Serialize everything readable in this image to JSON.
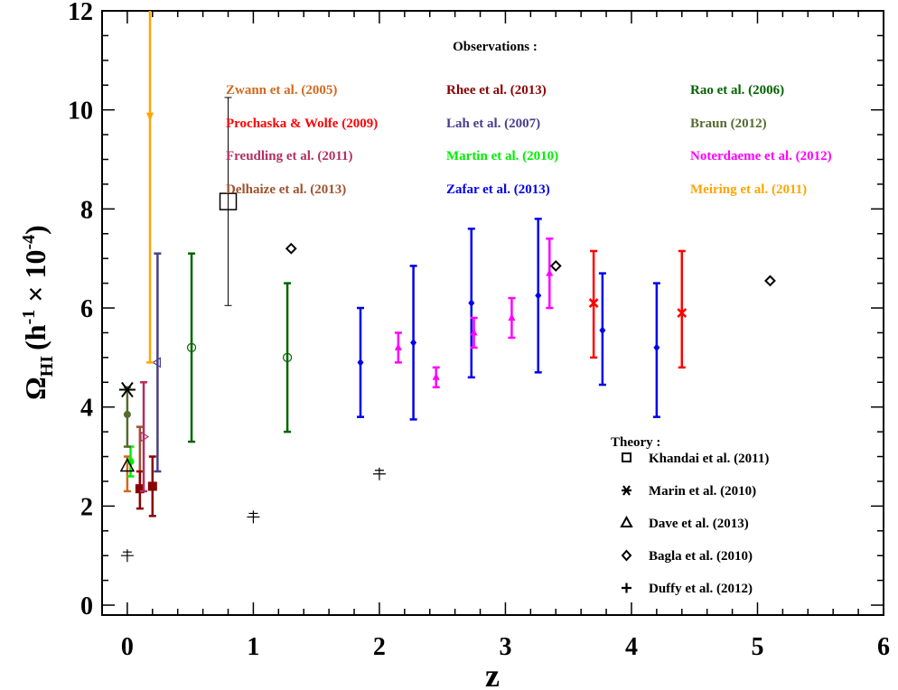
{
  "chart_data": {
    "type": "scatter",
    "x_axis": {
      "label": "z",
      "range": [
        -0.2,
        6.0
      ],
      "ticks": [
        0,
        1,
        2,
        3,
        4,
        5,
        6
      ],
      "minor_step": 0.2
    },
    "y_axis": {
      "label_symbol": "Ω",
      "label_subscript": "HI",
      "label_units": "(h",
      "label_exp1": "-1",
      "label_times": " × 10",
      "label_exp2": "-4",
      "label_close": ")",
      "range": [
        -0.2,
        12.0
      ],
      "ticks": [
        0,
        2,
        4,
        6,
        8,
        10,
        12
      ],
      "minor_step": 0.5
    },
    "legend_observations_title": "Observations :",
    "legend_theory_title": "Theory :",
    "observations": [
      {
        "name": "Zwann et al. (2005)",
        "color": "#d2691e",
        "marker": "none",
        "points": [
          {
            "x": 0.0,
            "y": 2.6,
            "ylo": 2.3,
            "yhi": 3.0
          }
        ]
      },
      {
        "name": "Delhaize et al. (2013)",
        "color": "#a0522d",
        "marker": "none",
        "points": [
          {
            "x": 0.1,
            "y": 2.9,
            "ylo": 2.3,
            "yhi": 3.6
          }
        ]
      },
      {
        "name": "Martin et al. (2010)",
        "color": "#00ee00",
        "marker": "filled-circle",
        "points": [
          {
            "x": 0.026,
            "y": 2.9,
            "ylo": 2.6,
            "yhi": 3.2
          }
        ]
      },
      {
        "name": "Braun (2012)",
        "color": "#556b2f",
        "marker": "filled-circle",
        "points": [
          {
            "x": 0.0,
            "y": 3.85,
            "ylo": 3.2,
            "yhi": 4.4
          }
        ]
      },
      {
        "name": "Prochaska & Wolfe (2009)",
        "color": "#ff0000",
        "marker": "x",
        "points": [
          {
            "x": 3.7,
            "y": 6.1,
            "ylo": 5.0,
            "yhi": 7.15
          },
          {
            "x": 4.4,
            "y": 5.9,
            "ylo": 4.8,
            "yhi": 7.15
          }
        ]
      },
      {
        "name": "Rhee et al. (2013)",
        "color": "#8b0000",
        "marker": "filled-square",
        "points": [
          {
            "x": 0.1,
            "y": 2.35,
            "ylo": 1.95,
            "yhi": 2.7
          },
          {
            "x": 0.2,
            "y": 2.4,
            "ylo": 1.8,
            "yhi": 3.0
          }
        ]
      },
      {
        "name": "Zafar et al. (2013)",
        "color": "#0000ee",
        "marker": "filled-diamond",
        "points": [
          {
            "x": 1.85,
            "y": 4.9,
            "ylo": 3.8,
            "yhi": 6.0
          },
          {
            "x": 2.27,
            "y": 5.3,
            "ylo": 3.75,
            "yhi": 6.85
          },
          {
            "x": 2.73,
            "y": 6.1,
            "ylo": 4.6,
            "yhi": 7.6
          },
          {
            "x": 3.26,
            "y": 6.25,
            "ylo": 4.7,
            "yhi": 7.8
          },
          {
            "x": 3.77,
            "y": 5.55,
            "ylo": 4.45,
            "yhi": 6.7
          },
          {
            "x": 4.2,
            "y": 5.2,
            "ylo": 3.8,
            "yhi": 6.5
          }
        ]
      },
      {
        "name": "Noterdaeme et al. (2012)",
        "color": "#ff00ff",
        "marker": "filled-triangle",
        "points": [
          {
            "x": 2.15,
            "y": 5.2,
            "ylo": 4.9,
            "yhi": 5.5
          },
          {
            "x": 2.45,
            "y": 4.6,
            "ylo": 4.4,
            "yhi": 4.8
          },
          {
            "x": 2.75,
            "y": 5.5,
            "ylo": 5.2,
            "yhi": 5.8
          },
          {
            "x": 3.05,
            "y": 5.8,
            "ylo": 5.4,
            "yhi": 6.2
          },
          {
            "x": 3.35,
            "y": 6.7,
            "ylo": 6.0,
            "yhi": 7.4
          }
        ]
      },
      {
        "name": "Freudling et al. (2011)",
        "color": "#b03060",
        "marker": "open-triangle-right",
        "points": [
          {
            "x": 0.13,
            "y": 3.4,
            "ylo": 2.3,
            "yhi": 4.5
          }
        ]
      },
      {
        "name": "Lah et al. (2007)",
        "color": "#483d8b",
        "marker": "open-triangle-left",
        "points": [
          {
            "x": 0.24,
            "y": 4.9,
            "ylo": 2.7,
            "yhi": 7.1
          }
        ]
      },
      {
        "name": "Rao et al. (2006)",
        "color": "#006400",
        "marker": "open-circle",
        "points": [
          {
            "x": 0.51,
            "y": 5.2,
            "ylo": 3.3,
            "yhi": 7.1
          },
          {
            "x": 1.27,
            "y": 5.0,
            "ylo": 3.5,
            "yhi": 6.5
          }
        ]
      },
      {
        "name": "Meiring et al. (2011)",
        "color": "#ffa500",
        "marker": "arrow-down",
        "points": [
          {
            "x": 0.18,
            "y": 9.8,
            "ylo": 4.9,
            "yhi": 12.0
          }
        ]
      }
    ],
    "theory": [
      {
        "name": "Khandai et al. (2011)",
        "marker": "open-square",
        "points": [
          {
            "x": 0.8,
            "y": 8.15,
            "ylo": 6.05,
            "yhi": 10.25
          }
        ]
      },
      {
        "name": "Marin et al. (2010)",
        "marker": "asterisk",
        "points": [
          {
            "x": 0.0,
            "y": 4.35
          }
        ]
      },
      {
        "name": "Dave et al. (2013)",
        "marker": "open-triangle",
        "points": [
          {
            "x": 0.0,
            "y": 2.8
          }
        ]
      },
      {
        "name": "Bagla et al. (2010)",
        "marker": "open-diamond",
        "points": [
          {
            "x": 1.3,
            "y": 7.2
          },
          {
            "x": 3.4,
            "y": 6.85
          },
          {
            "x": 5.1,
            "y": 6.55
          }
        ]
      },
      {
        "name": "Duffy et al. (2012)",
        "marker": "plus",
        "points": [
          {
            "x": 0.0,
            "y": 1.0
          },
          {
            "x": 1.0,
            "y": 1.78
          },
          {
            "x": 2.0,
            "y": 2.65
          }
        ]
      }
    ]
  }
}
